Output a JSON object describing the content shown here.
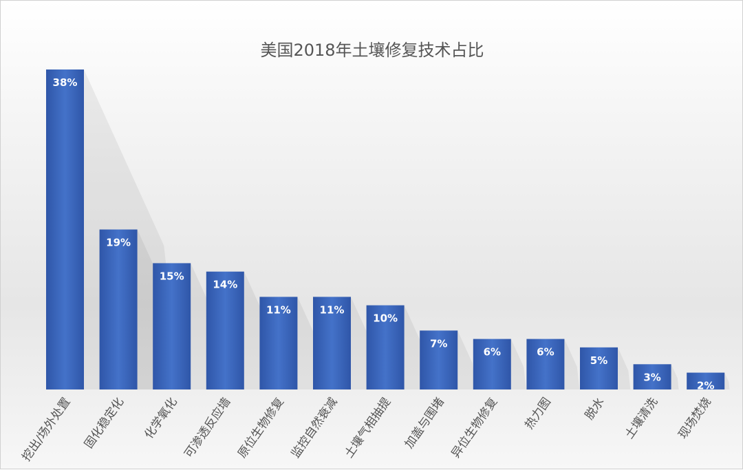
{
  "chart_data": {
    "type": "bar",
    "title": "美国2018年土壤修复技术占比",
    "categories": [
      "挖出/场外处置",
      "固化稳定化",
      "化学氧化",
      "可渗透反应墙",
      "原位生物修复",
      "监控自然衰减",
      "土壤气相抽提",
      "加盖与围堵",
      "异位生物修复",
      "热力图",
      "脱水",
      "土壤清洗",
      "现场焚烧"
    ],
    "values": [
      38,
      19,
      15,
      14,
      11,
      11,
      10,
      7,
      6,
      6,
      5,
      3,
      2
    ],
    "data_labels": [
      "38%",
      "19%",
      "15%",
      "14%",
      "11%",
      "11%",
      "10%",
      "7%",
      "6%",
      "6%",
      "5%",
      "3%",
      "2%"
    ],
    "xlabel": "",
    "ylabel": "",
    "ylim": [
      0,
      38
    ],
    "grid": false,
    "legend": "none",
    "bar_color": "#3b63b8",
    "label_color": "#ffffff"
  }
}
